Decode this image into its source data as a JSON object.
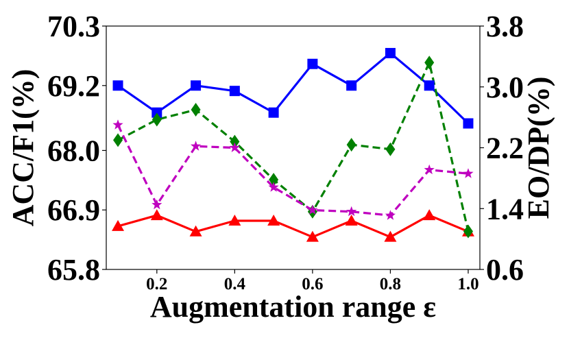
{
  "chart_data": {
    "type": "line",
    "xlabel": "Augmentation range ε",
    "ylabel_left": "ACC/F1(%)",
    "ylabel_right": "EO/DP(%)",
    "xlim": [
      0.07,
      1.03
    ],
    "ylim_left": [
      65.8,
      70.3
    ],
    "ylim_right": [
      0.6,
      3.8
    ],
    "x_ticks": [
      "0.2",
      "0.4",
      "0.6",
      "0.8",
      "1.0"
    ],
    "x_tick_values": [
      0.2,
      0.4,
      0.6,
      0.8,
      1.0
    ],
    "y_left_ticks": [
      "65.8",
      "66.9",
      "68.0",
      "69.2",
      "70.3"
    ],
    "y_left_tick_values": [
      65.8,
      66.9,
      68.0,
      69.2,
      70.3
    ],
    "y_right_ticks": [
      "0.6",
      "1.4",
      "2.2",
      "3.0",
      "3.8"
    ],
    "y_right_tick_values": [
      0.6,
      1.4,
      2.2,
      3.0,
      3.8
    ],
    "grid": false,
    "x": [
      0.1,
      0.2,
      0.3,
      0.4,
      0.5,
      0.6,
      0.7,
      0.8,
      0.9,
      1.0
    ],
    "series": [
      {
        "axis": "left",
        "color": "#0000ff",
        "dash": "solid",
        "marker": "square",
        "values": [
          69.2,
          68.7,
          69.2,
          69.1,
          68.7,
          69.6,
          69.2,
          69.8,
          69.2,
          68.5
        ]
      },
      {
        "axis": "left",
        "color": "#ff0000",
        "dash": "solid",
        "marker": "triangle",
        "values": [
          66.6,
          66.8,
          66.5,
          66.7,
          66.7,
          66.4,
          66.7,
          66.4,
          66.8,
          66.5
        ]
      },
      {
        "axis": "right",
        "color": "#008000",
        "dash": "dashed",
        "marker": "diamond",
        "values": [
          2.3,
          2.57,
          2.7,
          2.28,
          1.78,
          1.36,
          2.24,
          2.18,
          3.32,
          1.1
        ]
      },
      {
        "axis": "right",
        "color": "#bf00bf",
        "dash": "dashed",
        "marker": "star",
        "values": [
          2.5,
          1.45,
          2.22,
          2.2,
          1.68,
          1.38,
          1.36,
          1.31,
          1.91,
          1.86
        ]
      }
    ]
  }
}
